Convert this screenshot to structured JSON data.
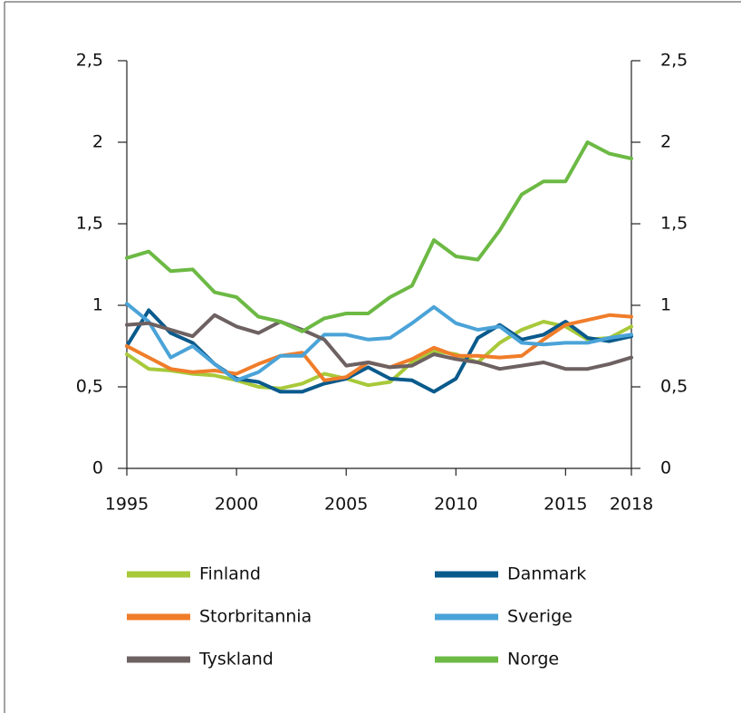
{
  "chart_data": {
    "type": "line",
    "x": [
      1995,
      1996,
      1997,
      1998,
      1999,
      2000,
      2001,
      2002,
      2003,
      2004,
      2005,
      2006,
      2007,
      2008,
      2009,
      2010,
      2011,
      2012,
      2013,
      2014,
      2015,
      2016,
      2017,
      2018
    ],
    "xlim": [
      1995,
      2018
    ],
    "xticks": [
      1995,
      2000,
      2005,
      2010,
      2015,
      2018
    ],
    "ylim": [
      0,
      2.5
    ],
    "yticks": [
      0,
      {
        "value": 0.5,
        "label": "0,5"
      },
      1,
      {
        "value": 1.5,
        "label": "1,5"
      },
      2,
      {
        "value": 2.5,
        "label": "2,5"
      }
    ],
    "y2lim": [
      0,
      2.5
    ],
    "y2ticks": [
      0,
      {
        "value": 0.5,
        "label": "0,5"
      },
      1,
      {
        "value": 1.5,
        "label": "1,5"
      },
      2,
      {
        "value": 2.5,
        "label": "2,5"
      }
    ],
    "grid": false,
    "series": [
      {
        "name": "Finland",
        "color": "#a8c93a",
        "values": [
          0.7,
          0.61,
          0.6,
          0.58,
          0.57,
          0.54,
          0.5,
          0.49,
          0.52,
          0.58,
          0.55,
          0.51,
          0.53,
          0.65,
          0.72,
          0.7,
          0.65,
          0.77,
          0.85,
          0.9,
          0.87,
          0.79,
          0.8,
          0.87
        ]
      },
      {
        "name": "Danmark",
        "color": "#0a5a8c",
        "values": [
          0.75,
          0.97,
          0.83,
          0.77,
          0.64,
          0.55,
          0.53,
          0.47,
          0.47,
          0.52,
          0.55,
          0.62,
          0.55,
          0.54,
          0.47,
          0.55,
          0.8,
          0.88,
          0.79,
          0.82,
          0.9,
          0.8,
          0.78,
          0.81
        ]
      },
      {
        "name": "Storbritannia",
        "color": "#f07d2a",
        "values": [
          0.75,
          0.68,
          0.61,
          0.59,
          0.6,
          0.58,
          0.64,
          0.69,
          0.71,
          0.54,
          0.56,
          0.65,
          0.62,
          0.67,
          0.74,
          0.69,
          0.69,
          0.68,
          0.69,
          0.79,
          0.88,
          0.91,
          0.94,
          0.93
        ]
      },
      {
        "name": "Sverige",
        "color": "#4aa3d8",
        "values": [
          1.01,
          0.9,
          0.68,
          0.75,
          0.64,
          0.54,
          0.59,
          0.69,
          0.69,
          0.82,
          0.82,
          0.79,
          0.8,
          0.89,
          0.99,
          0.89,
          0.85,
          0.87,
          0.77,
          0.76,
          0.77,
          0.77,
          0.8,
          0.82
        ]
      },
      {
        "name": "Tyskland",
        "color": "#6d6161",
        "values": [
          0.88,
          0.89,
          0.85,
          0.81,
          0.94,
          0.87,
          0.83,
          0.9,
          0.85,
          0.79,
          0.63,
          0.65,
          0.62,
          0.63,
          0.7,
          0.67,
          0.65,
          0.61,
          0.63,
          0.65,
          0.61,
          0.61,
          0.64,
          0.68
        ]
      },
      {
        "name": "Norge",
        "color": "#6cb944",
        "values": [
          1.29,
          1.33,
          1.21,
          1.22,
          1.08,
          1.05,
          0.93,
          0.9,
          0.84,
          0.92,
          0.95,
          0.95,
          1.05,
          1.12,
          1.4,
          1.3,
          1.28,
          1.46,
          1.68,
          1.76,
          1.76,
          2.0,
          1.93,
          1.9
        ]
      }
    ]
  }
}
